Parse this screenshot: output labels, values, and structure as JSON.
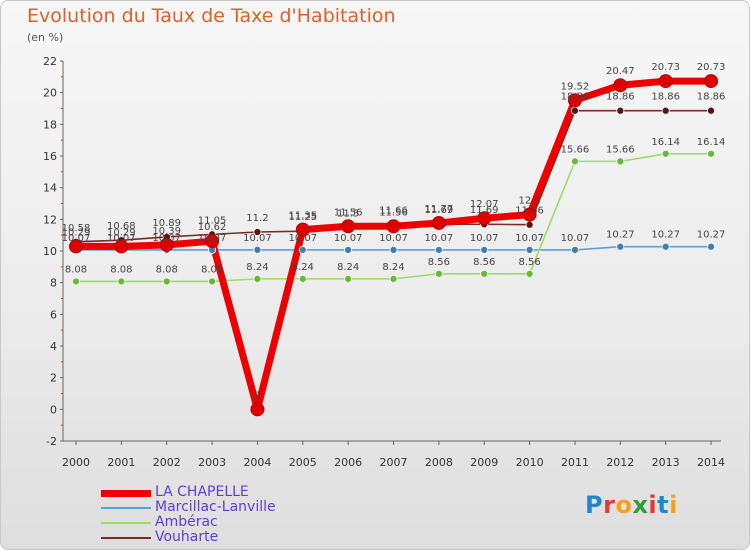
{
  "header": {
    "title": "Evolution du Taux de Taxe d'Habitation",
    "unit": "(en %)"
  },
  "logo": {
    "text": "Proxiti",
    "letters": [
      {
        "ch": "P",
        "color": "#1e88c8"
      },
      {
        "ch": "r",
        "color": "#e53935"
      },
      {
        "ch": "o",
        "color": "#f7a11a"
      },
      {
        "ch": "x",
        "color": "#2e9d3a"
      },
      {
        "ch": "i",
        "color": "#e53935"
      },
      {
        "ch": "t",
        "color": "#1e88c8"
      },
      {
        "ch": "i",
        "color": "#f7a11a"
      }
    ]
  },
  "chart_data": {
    "type": "line",
    "title": "Evolution du Taux de Taxe d'Habitation",
    "ylabel": "(en %)",
    "xlabel": "",
    "x": [
      "2000",
      "2001",
      "2002",
      "2003",
      "2004",
      "2005",
      "2006",
      "2007",
      "2008",
      "2009",
      "2010",
      "2011",
      "2012",
      "2013",
      "2014"
    ],
    "ylim": [
      -2,
      22
    ],
    "yticks": [
      -2,
      0,
      2,
      4,
      6,
      8,
      10,
      12,
      14,
      16,
      18,
      20,
      22
    ],
    "grid": false,
    "legend_position": "bottom-left",
    "series": [
      {
        "name": "LA CHAPELLE",
        "color": "#ee0000",
        "marker_color": "#dd0000",
        "values": [
          10.29,
          10.29,
          10.39,
          10.62,
          0,
          11.35,
          11.56,
          11.56,
          11.77,
          12.07,
          12.3,
          19.52,
          20.47,
          20.73,
          20.73
        ],
        "labels": [
          "10.29",
          "10.29",
          "10.39",
          "10.62",
          "0",
          "11.35",
          "11.56",
          "11.56",
          "11.77",
          "12.07",
          "12.3",
          "19.52",
          "20.47",
          "20.73",
          "20.73"
        ]
      },
      {
        "name": "Marcillac-Lanville",
        "color": "#5aa0d8",
        "marker_color": "#3f7fb8",
        "values": [
          10.07,
          10.07,
          10.07,
          10.07,
          10.07,
          10.07,
          10.07,
          10.07,
          10.07,
          10.07,
          10.07,
          10.07,
          10.27,
          10.27,
          10.27
        ],
        "labels": [
          "10.07",
          "10.07",
          "10.07",
          "10.07",
          "10.07",
          "10.07",
          "10.07",
          "10.07",
          "10.07",
          "10.07",
          "10.07",
          "10.07",
          "10.27",
          "10.27",
          "10.27"
        ]
      },
      {
        "name": "Ambérac",
        "color": "#99dd66",
        "marker_color": "#66bb33",
        "values": [
          8.08,
          8.08,
          8.08,
          8.08,
          8.24,
          8.24,
          8.24,
          8.24,
          8.56,
          8.56,
          8.56,
          15.66,
          15.66,
          16.14,
          16.14
        ],
        "labels": [
          "8.08",
          "8.08",
          "8.08",
          "8.08",
          "8.24",
          "8.24",
          "8.24",
          "8.24",
          "8.56",
          "8.56",
          "8.56",
          "15.66",
          "15.66",
          "16.14",
          "16.14"
        ]
      },
      {
        "name": "Vouharte",
        "color": "#7a2a2a",
        "marker_color": "#5a1414",
        "values": [
          10.58,
          10.68,
          10.89,
          11.05,
          11.2,
          11.25,
          11.5,
          11.66,
          11.69,
          11.69,
          11.66,
          18.86,
          18.86,
          18.86,
          18.86
        ],
        "labels": [
          "10.58",
          "10.68",
          "10.89",
          "11.05",
          "11.2",
          "11.25",
          "11.5",
          "11.66",
          "11.69",
          "11.69",
          "11.66",
          "18.86",
          "18.86",
          "18.86",
          "18.86"
        ]
      }
    ]
  }
}
